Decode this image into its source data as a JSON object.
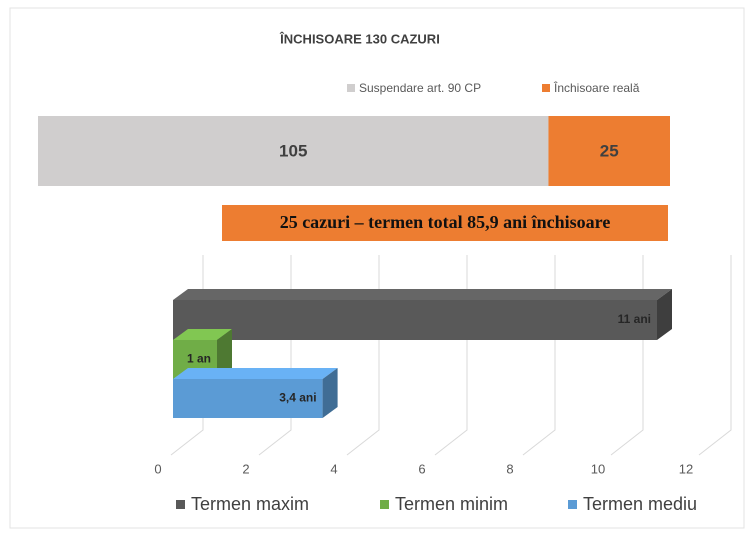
{
  "chart_data": [
    {
      "type": "stacked-bar",
      "title": "ÎNCHISOARE 130 CAZURI",
      "categories": [
        null
      ],
      "series": [
        {
          "name": "Suspendare art. 90 CP",
          "color": "#d0cece",
          "values": [
            105
          ]
        },
        {
          "name": "Închisoare reală",
          "color": "#ed7d31",
          "values": [
            25
          ]
        }
      ],
      "xlim": [
        0,
        130
      ],
      "annotation": "25 cazuri – termen total 85,9 ani închisoare"
    },
    {
      "type": "bar3d",
      "categories": [
        null
      ],
      "series": [
        {
          "name": "Termen maxim",
          "color": "#595959",
          "values": [
            11
          ],
          "value_labels": [
            "11 ani"
          ]
        },
        {
          "name": "Termen minim",
          "color": "#70ad47",
          "values": [
            1
          ],
          "value_labels": [
            "1 an"
          ]
        },
        {
          "name": "Termen mediu",
          "color": "#5b9bd5",
          "values": [
            3.4
          ],
          "value_labels": [
            "3,4 ani"
          ]
        }
      ],
      "xlim": [
        0,
        12
      ],
      "xticks": [
        0,
        2,
        4,
        6,
        8,
        10,
        12
      ],
      "grid": true
    }
  ]
}
